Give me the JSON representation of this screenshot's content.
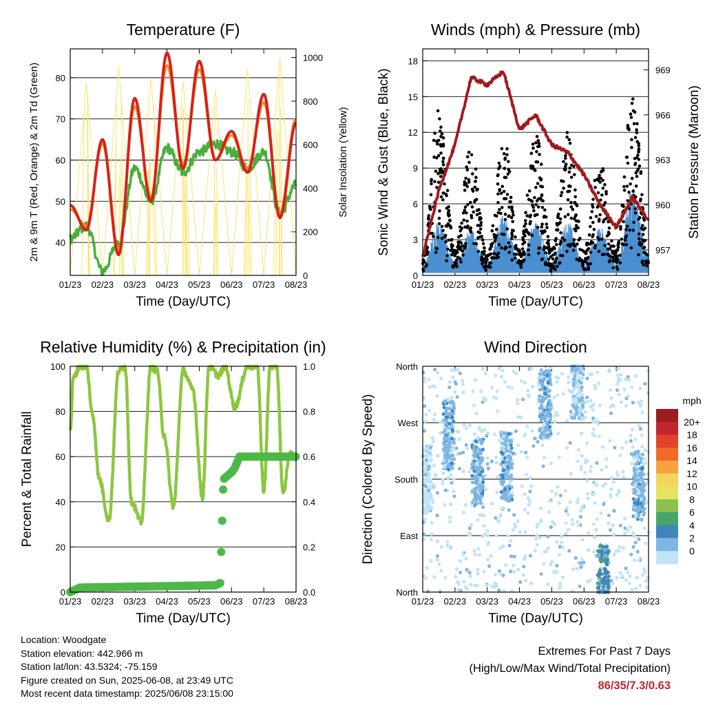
{
  "chart_data": [
    {
      "type": "line",
      "title": "Temperature (F)",
      "xlabel": "Time (Day/UTC)",
      "ylabel": "2m & 9m T (Red, Orange) & 2m Td (Green)",
      "y2label": "Solar Insolation (Yellow)",
      "ylim": [
        32,
        87
      ],
      "y2lim": [
        0,
        1040
      ],
      "yticks": [
        40,
        50,
        60,
        70,
        80
      ],
      "y2ticks": [
        0,
        200,
        400,
        600,
        800,
        1000
      ],
      "categories": [
        "01/23",
        "02/23",
        "03/23",
        "04/23",
        "05/23",
        "06/23",
        "07/23",
        "08/23"
      ],
      "x": [
        0,
        0.5,
        1,
        1.5,
        2,
        2.5,
        3,
        3.5,
        4,
        4.5,
        5,
        5.5,
        6,
        6.5,
        7
      ],
      "series": [
        {
          "name": "2m T",
          "color": "#d62218",
          "values": [
            49,
            43,
            65,
            37,
            75,
            50,
            86,
            58,
            84,
            60,
            67,
            57,
            76,
            46,
            69
          ]
        },
        {
          "name": "9m T",
          "color": "#f08a24",
          "values": [
            48,
            44,
            64,
            38,
            73,
            51,
            83,
            59,
            82,
            60,
            66,
            58,
            74,
            47,
            70
          ]
        },
        {
          "name": "2m Td",
          "color": "#4aae3c",
          "values": [
            41,
            44,
            33,
            40,
            58,
            50,
            63,
            57,
            62,
            64,
            62,
            58,
            62,
            47,
            54
          ]
        },
        {
          "name": "Solar Insolation",
          "axis": "y2",
          "color": "#fbe36a",
          "values": [
            0,
            880,
            0,
            960,
            0,
            900,
            0,
            890,
            0,
            850,
            0,
            950,
            0,
            1000,
            0
          ]
        }
      ]
    },
    {
      "type": "scatter",
      "title": "Winds (mph) & Pressure (mb)",
      "xlabel": "Time (Day/UTC)",
      "ylabel": "Sonic Wind & Gust (Blue, Black)",
      "y2label": "Station Pressure (Maroon)",
      "ylim": [
        0,
        19
      ],
      "y2lim": [
        955.3,
        970.4
      ],
      "yticks": [
        0,
        3,
        6,
        9,
        12,
        15,
        18
      ],
      "y2ticks": [
        957,
        960,
        963,
        966,
        969
      ],
      "categories": [
        "01/23",
        "02/23",
        "03/23",
        "04/23",
        "05/23",
        "06/23",
        "07/23",
        "08/23"
      ],
      "x": [
        0,
        0.5,
        1,
        1.5,
        2,
        2.5,
        3,
        3.5,
        4,
        4.5,
        5,
        5.5,
        6,
        6.5,
        7
      ],
      "series": [
        {
          "name": "Gust",
          "color": "#000000",
          "values": [
            1.5,
            13,
            2,
            10,
            1.5,
            11,
            2,
            11,
            2,
            11,
            2,
            9,
            2,
            14,
            3
          ]
        },
        {
          "name": "Sonic Wind",
          "color": "#4a8fd0",
          "values": [
            0.8,
            4,
            1,
            3.5,
            0.8,
            4.5,
            1,
            4,
            1,
            4,
            1,
            3.5,
            1,
            6.5,
            1.5
          ]
        },
        {
          "name": "Station Pressure",
          "axis": "y2",
          "color": "#a11a1e",
          "values": [
            956.5,
            961,
            964,
            968.5,
            968,
            968.9,
            965,
            966,
            964,
            963.5,
            962,
            960,
            958.5,
            960.5,
            959
          ]
        }
      ]
    },
    {
      "type": "line",
      "title": "Relative Humidity (%) & Precipitation (in)",
      "xlabel": "Time (Day/UTC)",
      "ylabel": "Percent & Total Rainfall",
      "ylim": [
        0,
        100
      ],
      "y2lim": [
        0,
        1.0
      ],
      "yticks": [
        0,
        20,
        40,
        60,
        80,
        100
      ],
      "y2ticks": [
        "0.0",
        "0.2",
        "0.4",
        "0.6",
        "0.8",
        "1.0"
      ],
      "categories": [
        "01/23",
        "02/23",
        "03/23",
        "04/23",
        "05/23",
        "06/23",
        "07/23",
        "08/23"
      ],
      "series": [
        {
          "name": "Relative Humidity",
          "color": "#8dc63f",
          "x": [
            0,
            0.1,
            0.3,
            0.5,
            0.7,
            0.9,
            1.2,
            1.5,
            1.7,
            1.9,
            2.2,
            2.5,
            2.7,
            2.9,
            3.2,
            3.5,
            3.8,
            4.1,
            4.3,
            4.6,
            4.8,
            5.1,
            5.5,
            5.8,
            6.0,
            6.2,
            6.4,
            6.6,
            6.8,
            7.0
          ],
          "values": [
            72,
            95,
            100,
            100,
            78,
            50,
            32,
            98,
            100,
            40,
            31,
            100,
            98,
            70,
            38,
            98,
            90,
            42,
            100,
            96,
            100,
            82,
            100,
            100,
            45,
            100,
            100,
            43,
            61,
            60
          ]
        },
        {
          "name": "Total Precipitation",
          "axis": "y2",
          "color": "#4cb848",
          "x": [
            0,
            0.3,
            4.5,
            4.65,
            4.75,
            5.0,
            5.1,
            5.25,
            7.0
          ],
          "values": [
            0,
            0.02,
            0.03,
            0.04,
            0.5,
            0.53,
            0.55,
            0.6,
            0.6
          ]
        }
      ]
    },
    {
      "type": "scatter",
      "title": "Wind Direction",
      "xlabel": "Time (Day/UTC)",
      "ylabel": "Direction (Colored By Speed)",
      "ylim": [
        0,
        360
      ],
      "yticks": [
        "North",
        "East",
        "South",
        "West",
        "North"
      ],
      "categories": [
        "01/23",
        "02/23",
        "03/23",
        "04/23",
        "05/23",
        "06/23",
        "07/23",
        "08/23"
      ],
      "colorbar": {
        "unit": "mph",
        "labels": [
          "20+",
          "18",
          "16",
          "14",
          "12",
          "10",
          "8",
          "6",
          "4",
          "2",
          "0"
        ],
        "colors": [
          "#9e1b1e",
          "#c1272d",
          "#e2432a",
          "#f26b2b",
          "#f8a23f",
          "#f4d35e",
          "#e6e45e",
          "#8cc152",
          "#4aa46a",
          "#3f86bf",
          "#7fb6e4",
          "#bfe3f7"
        ]
      },
      "clusters": [
        {
          "x": 0.1,
          "dir": 180,
          "speed": 1
        },
        {
          "x": 0.8,
          "dir": 250,
          "speed": 3
        },
        {
          "x": 1.7,
          "dir": 190,
          "speed": 3
        },
        {
          "x": 2.6,
          "dir": 200,
          "speed": 3
        },
        {
          "x": 3.8,
          "dir": 300,
          "speed": 3
        },
        {
          "x": 4.8,
          "dir": 330,
          "speed": 2
        },
        {
          "x": 5.6,
          "dir": 20,
          "speed": 5
        },
        {
          "x": 6.7,
          "dir": 170,
          "speed": 3
        }
      ]
    }
  ],
  "info": {
    "location": "Location: Woodgate",
    "elevation": "Station elevation: 442.966 m",
    "latlon": "Station lat/lon: 43.5324; -75.159",
    "created": "Figure created on Sun, 2025-06-08, at 23:49 UTC",
    "latest": "Most recent data timestamp: 2025/06/08 23:15:00"
  },
  "extremes": {
    "title": "Extremes For Past 7 Days",
    "subtitle": "(High/Low/Max Wind/Total Precipitation)",
    "values": "86/35/7.3/0.63"
  }
}
